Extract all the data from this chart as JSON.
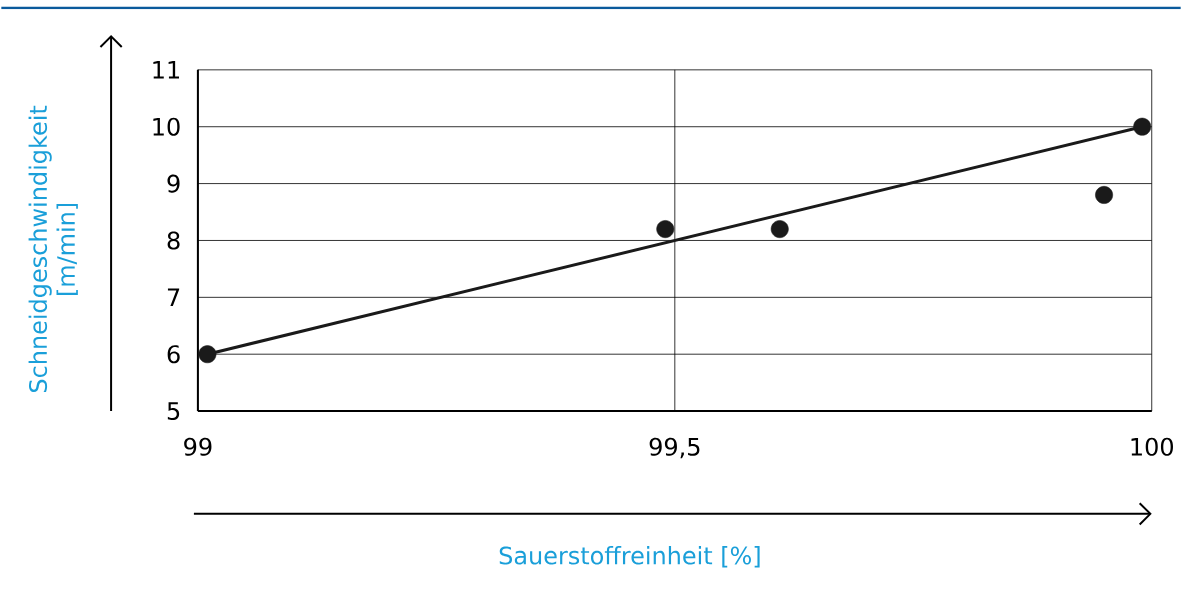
{
  "chart_data": {
    "type": "scatter",
    "xlabel": "Sauerstoffreinheit [%]",
    "ylabel": "Schneidgeschwindigkeit [m/min]",
    "xlim": [
      99,
      100
    ],
    "ylim": [
      5,
      11
    ],
    "xticks": [
      99,
      {
        "value": 99.5,
        "label": "99,5"
      },
      100
    ],
    "yticks": [
      5,
      6,
      7,
      8,
      9,
      10,
      11
    ],
    "grid": true,
    "series": [
      {
        "marker": "circle",
        "color": "#1a1a1a",
        "x": [
          99.01,
          99.49,
          99.61,
          99.95,
          99.99
        ],
        "values": [
          6.0,
          8.2,
          8.2,
          8.8,
          10.0
        ]
      },
      {
        "type": "line",
        "marker": "none",
        "color": "#1a1a1a",
        "line_style": "solid",
        "x": [
          99.01,
          99.99
        ],
        "values": [
          6.0,
          10.0
        ]
      }
    ]
  }
}
